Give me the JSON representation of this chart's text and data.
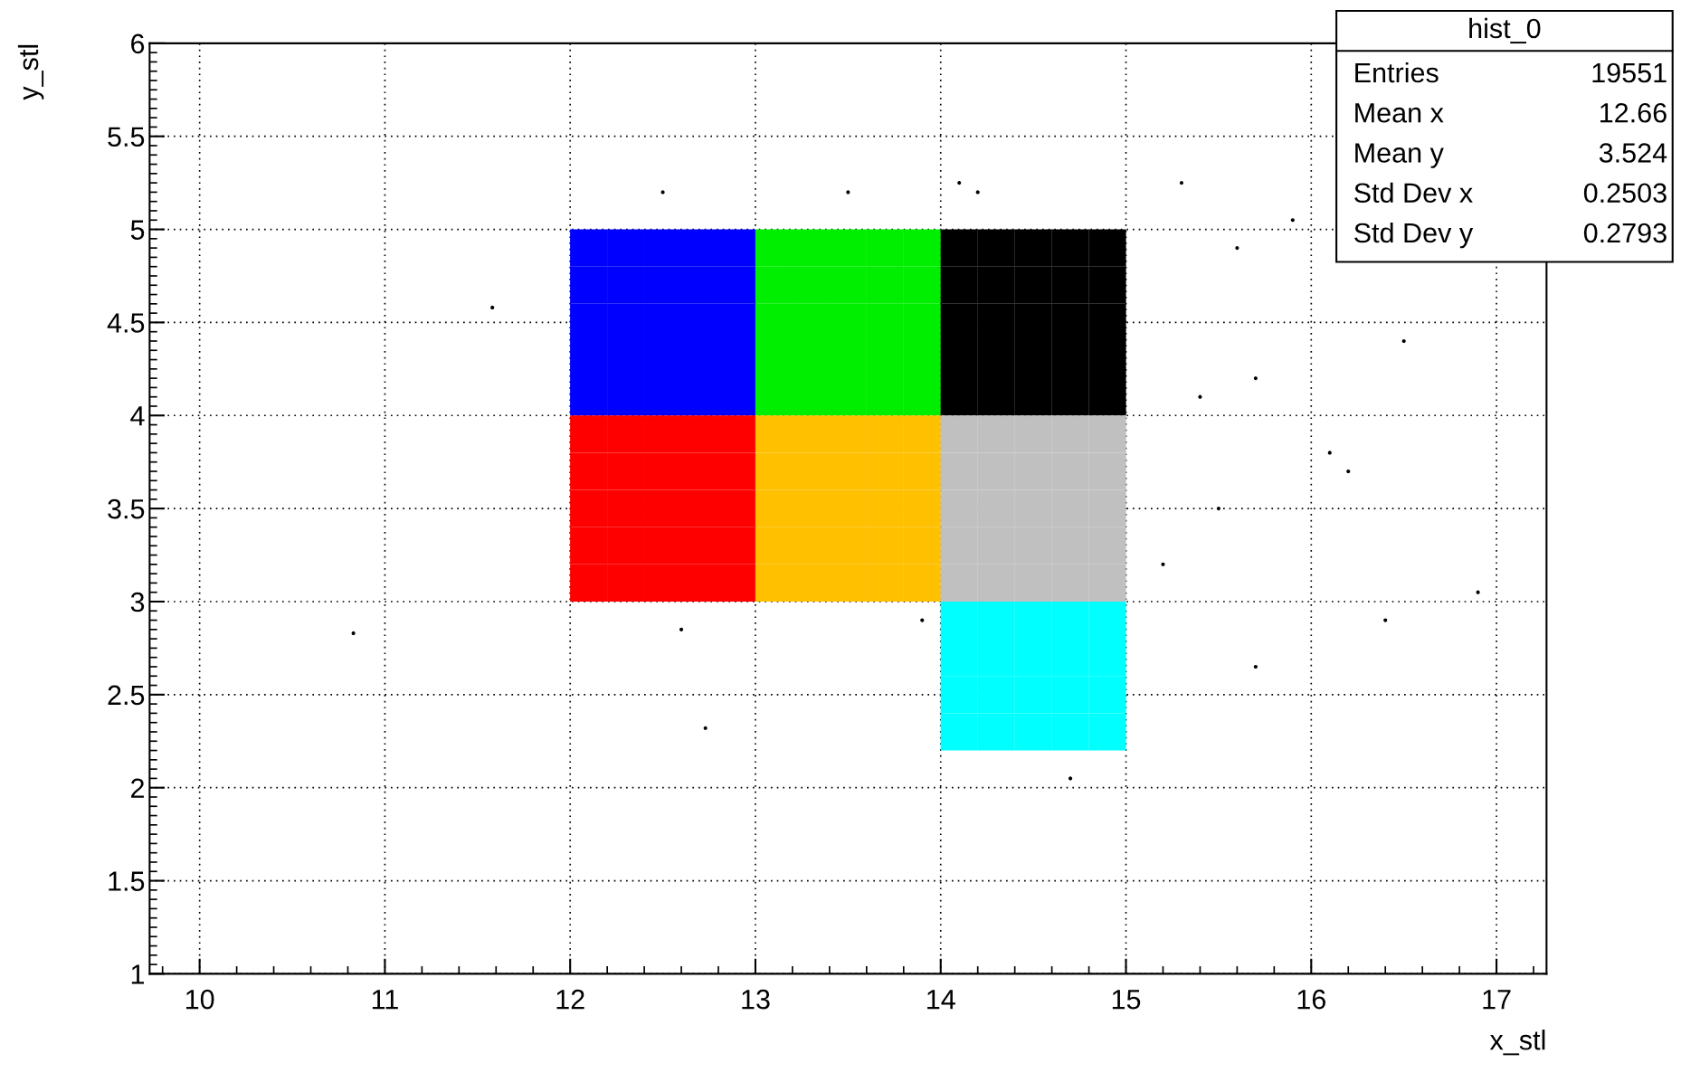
{
  "chart_data": {
    "type": "scatter",
    "xlabel": "x_stl",
    "ylabel": "y_stl",
    "xlim": [
      9.73,
      17.27
    ],
    "ylim": [
      1,
      6
    ],
    "xticks": [
      10,
      11,
      12,
      13,
      14,
      15,
      16,
      17
    ],
    "yticks": [
      1,
      1.5,
      2,
      2.5,
      3,
      3.5,
      4,
      4.5,
      5,
      5.5,
      6
    ],
    "grid": true,
    "legend": false,
    "annotations": [
      "hist_0",
      "Entries 19551",
      "Mean x 12.66",
      "Mean y 3.524",
      "Std Dev x 0.2503",
      "Std Dev y 0.2793"
    ],
    "series": [
      {
        "color": "#0000ff",
        "marker": "square",
        "x": [
          12.1,
          12.3,
          12.5,
          12.7,
          12.9,
          12.1,
          12.3,
          12.5,
          12.7,
          12.9,
          12.1,
          12.3,
          12.5,
          12.7,
          12.9,
          12.1,
          12.3,
          12.5,
          12.7,
          12.9,
          12.1,
          12.3,
          12.5,
          12.7,
          12.9
        ],
        "values": [
          4.1,
          4.1,
          4.1,
          4.1,
          4.1,
          4.3,
          4.3,
          4.3,
          4.3,
          4.3,
          4.5,
          4.5,
          4.5,
          4.5,
          4.5,
          4.7,
          4.7,
          4.7,
          4.7,
          4.7,
          4.9,
          4.9,
          4.9,
          4.9,
          4.9
        ]
      },
      {
        "color": "#00ee00",
        "marker": "square",
        "x": [
          13.1,
          13.3,
          13.5,
          13.7,
          13.9,
          13.1,
          13.3,
          13.5,
          13.7,
          13.9,
          13.1,
          13.3,
          13.5,
          13.7,
          13.9,
          13.1,
          13.3,
          13.5,
          13.7,
          13.9,
          13.1,
          13.3,
          13.5,
          13.7,
          13.9
        ],
        "values": [
          4.1,
          4.1,
          4.1,
          4.1,
          4.1,
          4.3,
          4.3,
          4.3,
          4.3,
          4.3,
          4.5,
          4.5,
          4.5,
          4.5,
          4.5,
          4.7,
          4.7,
          4.7,
          4.7,
          4.7,
          4.9,
          4.9,
          4.9,
          4.9,
          4.9
        ]
      },
      {
        "color": "#000000",
        "marker": "square",
        "x": [
          14.1,
          14.3,
          14.5,
          14.7,
          14.9,
          14.1,
          14.3,
          14.5,
          14.7,
          14.9,
          14.1,
          14.3,
          14.5,
          14.7,
          14.9,
          14.1,
          14.3,
          14.5,
          14.7,
          14.9,
          14.1,
          14.3,
          14.5,
          14.7,
          14.9
        ],
        "values": [
          4.1,
          4.1,
          4.1,
          4.1,
          4.1,
          4.3,
          4.3,
          4.3,
          4.3,
          4.3,
          4.5,
          4.5,
          4.5,
          4.5,
          4.5,
          4.7,
          4.7,
          4.7,
          4.7,
          4.7,
          4.9,
          4.9,
          4.9,
          4.9,
          4.9
        ]
      },
      {
        "color": "#ff0000",
        "marker": "square",
        "x": [
          12.1,
          12.3,
          12.5,
          12.7,
          12.9,
          12.1,
          12.3,
          12.5,
          12.7,
          12.9,
          12.1,
          12.3,
          12.5,
          12.7,
          12.9,
          12.1,
          12.3,
          12.5,
          12.7,
          12.9,
          12.1,
          12.3,
          12.5,
          12.7,
          12.9
        ],
        "values": [
          3.1,
          3.1,
          3.1,
          3.1,
          3.1,
          3.3,
          3.3,
          3.3,
          3.3,
          3.3,
          3.5,
          3.5,
          3.5,
          3.5,
          3.5,
          3.7,
          3.7,
          3.7,
          3.7,
          3.7,
          3.9,
          3.9,
          3.9,
          3.9,
          3.9
        ]
      },
      {
        "color": "#ffc000",
        "marker": "square",
        "x": [
          13.1,
          13.3,
          13.5,
          13.7,
          13.9,
          13.1,
          13.3,
          13.5,
          13.7,
          13.9,
          13.1,
          13.3,
          13.5,
          13.7,
          13.9,
          13.1,
          13.3,
          13.5,
          13.7,
          13.9,
          13.1,
          13.3,
          13.5,
          13.7,
          13.9
        ],
        "values": [
          3.1,
          3.1,
          3.1,
          3.1,
          3.1,
          3.3,
          3.3,
          3.3,
          3.3,
          3.3,
          3.5,
          3.5,
          3.5,
          3.5,
          3.5,
          3.7,
          3.7,
          3.7,
          3.7,
          3.7,
          3.9,
          3.9,
          3.9,
          3.9,
          3.9
        ]
      },
      {
        "color": "#c0c0c0",
        "marker": "square",
        "x": [
          14.1,
          14.3,
          14.5,
          14.7,
          14.9,
          14.1,
          14.3,
          14.5,
          14.7,
          14.9,
          14.1,
          14.3,
          14.5,
          14.7,
          14.9,
          14.1,
          14.3,
          14.5,
          14.7,
          14.9,
          14.1,
          14.3,
          14.5,
          14.7,
          14.9
        ],
        "values": [
          3.1,
          3.1,
          3.1,
          3.1,
          3.1,
          3.3,
          3.3,
          3.3,
          3.3,
          3.3,
          3.5,
          3.5,
          3.5,
          3.5,
          3.5,
          3.7,
          3.7,
          3.7,
          3.7,
          3.7,
          3.9,
          3.9,
          3.9,
          3.9,
          3.9
        ]
      },
      {
        "color": "#00ffff",
        "marker": "square",
        "x": [
          14.1,
          14.3,
          14.5,
          14.7,
          14.9,
          14.1,
          14.3,
          14.5,
          14.7,
          14.9,
          14.1,
          14.3,
          14.5,
          14.7,
          14.9,
          14.1,
          14.3,
          14.5,
          14.7,
          14.9
        ],
        "values": [
          2.3,
          2.3,
          2.3,
          2.3,
          2.3,
          2.5,
          2.5,
          2.5,
          2.5,
          2.5,
          2.7,
          2.7,
          2.7,
          2.7,
          2.7,
          2.9,
          2.9,
          2.9,
          2.9,
          2.9
        ]
      },
      {
        "color": "#000000",
        "marker": "circle",
        "x": [
          11.58,
          10.83,
          12.73,
          15.3,
          15.6,
          15.9,
          16.1,
          16.5,
          16.2,
          16.4,
          15.2,
          15.5,
          15.7,
          12.5,
          13.5,
          14.2,
          14.7,
          15.7,
          12.6,
          13.9,
          14.1,
          15.4,
          16.9
        ],
        "values": [
          4.58,
          2.83,
          2.32,
          5.25,
          4.9,
          5.05,
          3.8,
          4.4,
          3.7,
          2.9,
          3.2,
          3.5,
          4.2,
          5.2,
          5.2,
          5.2,
          2.05,
          2.65,
          2.85,
          2.9,
          5.25,
          4.1,
          3.05
        ]
      }
    ]
  }
}
